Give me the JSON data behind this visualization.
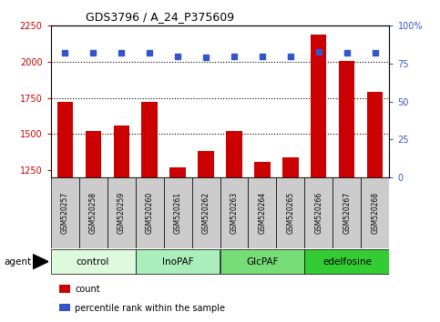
{
  "title": "GDS3796 / A_24_P375609",
  "samples": [
    "GSM520257",
    "GSM520258",
    "GSM520259",
    "GSM520260",
    "GSM520261",
    "GSM520262",
    "GSM520263",
    "GSM520264",
    "GSM520265",
    "GSM520266",
    "GSM520267",
    "GSM520268"
  ],
  "counts": [
    1720,
    1520,
    1555,
    1720,
    1270,
    1380,
    1520,
    1305,
    1340,
    2190,
    2005,
    1790
  ],
  "percentile_ranks": [
    82,
    82,
    82,
    82,
    80,
    79,
    80,
    80,
    80,
    83,
    82,
    82
  ],
  "groups": [
    {
      "label": "control",
      "start": 0,
      "end": 3,
      "color": "#ddfadd"
    },
    {
      "label": "InoPAF",
      "start": 3,
      "end": 6,
      "color": "#aaeea a"
    },
    {
      "label": "GlcPAF",
      "start": 6,
      "end": 9,
      "color": "#77dd77"
    },
    {
      "label": "edelfosine",
      "start": 9,
      "end": 12,
      "color": "#33cc33"
    }
  ],
  "ylim_left": [
    1200,
    2250
  ],
  "ylim_right": [
    0,
    100
  ],
  "yticks_left": [
    1250,
    1500,
    1750,
    2000,
    2250
  ],
  "yticks_right": [
    0,
    25,
    50,
    75,
    100
  ],
  "bar_color": "#cc0000",
  "dot_color": "#3355cc",
  "bar_width": 0.55,
  "grid_color": "#000000",
  "sample_bg_color": "#cccccc",
  "plot_bg": "#ffffff",
  "legend_items": [
    {
      "label": "count",
      "color": "#cc0000"
    },
    {
      "label": "percentile rank within the sample",
      "color": "#3355cc"
    }
  ]
}
